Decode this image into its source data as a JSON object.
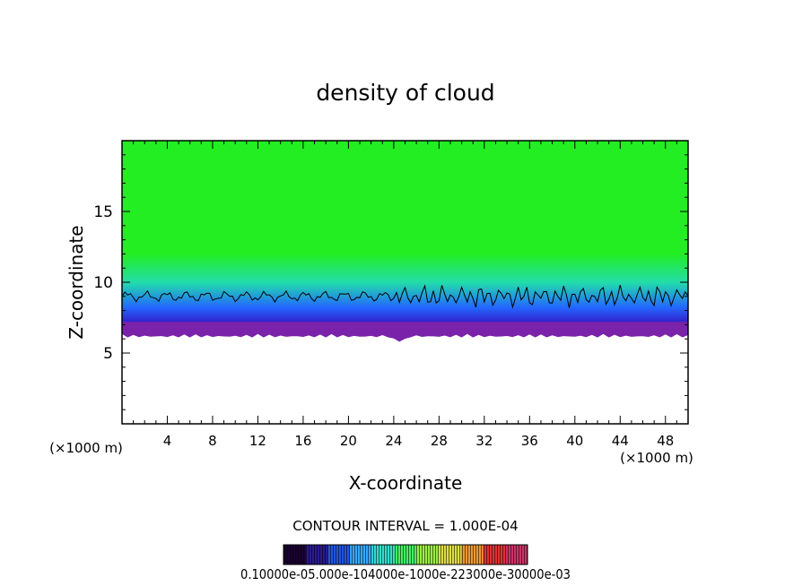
{
  "chart_data": {
    "type": "heatmap",
    "title": "density of cloud",
    "xlabel": "X-coordinate",
    "ylabel": "Z-coordinate",
    "x_unit_left": "(×1000 m)",
    "x_unit_right": "(×1000 m)",
    "xlim": [
      0,
      50
    ],
    "ylim": [
      0,
      20
    ],
    "xticks": [
      "4",
      "8",
      "12",
      "16",
      "20",
      "24",
      "28",
      "32",
      "36",
      "40",
      "44",
      "48"
    ],
    "yticks": [
      "5",
      "10",
      "15"
    ],
    "cloud_base_z": 6.5,
    "contour_level_z": 9.0,
    "contour_interval_text": "CONTOUR INTERVAL = 1.000E-04",
    "colorbar_labels_text": "0.10000e-05.000e-104000e-1000e-223000e-30000e-03",
    "colorbar_colors": [
      "#1a0030",
      "#2a1a8c",
      "#2255dd",
      "#33aaff",
      "#33ddcc",
      "#44ee66",
      "#99ee44",
      "#dddd44",
      "#ee9933",
      "#dd3333",
      "#cc3366"
    ],
    "field_colors": {
      "top": "#22ee22",
      "mid": "#22ddaa",
      "low": "#2266ff",
      "base": "#6622aa"
    }
  }
}
